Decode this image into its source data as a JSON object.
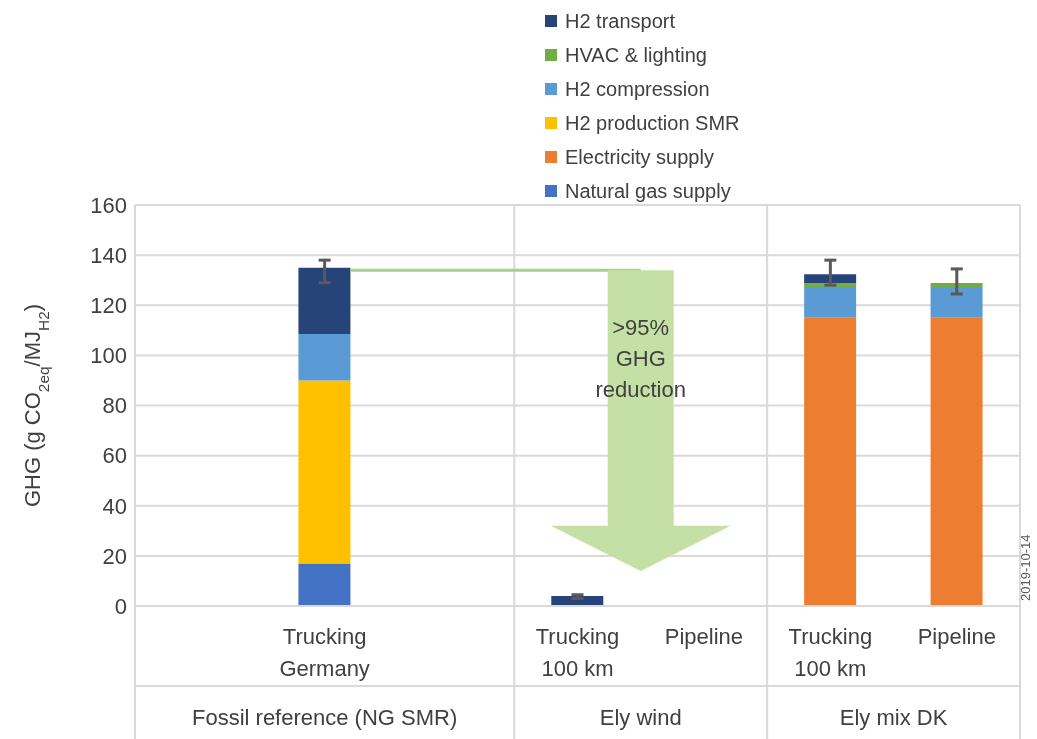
{
  "chart_data": {
    "type": "bar",
    "stacked": true,
    "categories": [
      null,
      "Trucking Germany",
      null,
      "Trucking 100 km",
      "Pipeline",
      "Trucking 100 km",
      "Pipeline"
    ],
    "ylabel": "GHG (g CO$_{2eq}$/MJ$_{H2}$)",
    "ylim": [
      0,
      160
    ],
    "yticks": [
      0,
      20,
      40,
      60,
      80,
      100,
      120,
      140,
      160
    ],
    "grid": "y",
    "legend": "top",
    "series": [
      {
        "name": "Natural gas supply",
        "color": "#4472c4",
        "values": [
          null,
          17,
          null,
          null,
          null,
          null,
          null
        ]
      },
      {
        "name": "Electricity supply",
        "color": "#ed7d31",
        "values": [
          null,
          null,
          null,
          null,
          null,
          115,
          115
        ]
      },
      {
        "name": "H2 production SMR",
        "color": "#ffc000",
        "values": [
          null,
          73,
          null,
          null,
          null,
          null,
          null
        ]
      },
      {
        "name": "H2 compression",
        "color": "#5b9bd5",
        "values": [
          null,
          18.5,
          null,
          null,
          null,
          12.3,
          12.3
        ]
      },
      {
        "name": "HVAC & lighting",
        "color": "#70ad47",
        "values": [
          null,
          null,
          null,
          null,
          null,
          1.6,
          1.6
        ],
        "errors": [
          null,
          null,
          null,
          null,
          null,
          null,
          [
            124.5,
            134.5
          ]
        ]
      },
      {
        "name": "H2 transport",
        "color": "#264478",
        "values": [
          null,
          26.5,
          null,
          4,
          null,
          3.5,
          null
        ],
        "errors": [
          null,
          [
            129,
            138
          ],
          null,
          [
            3,
            4.5
          ],
          null,
          [
            128,
            138
          ],
          null
        ]
      }
    ],
    "ref_lines": [
      {
        "axis": "y",
        "value": 134,
        "color": "#a9d18e"
      }
    ],
    "annotations": [
      "Fossil reference (NG SMR)",
      "Ely wind",
      "Ely mix DK",
      ">95% GHG reduction",
      "2019-10-14"
    ]
  }
}
